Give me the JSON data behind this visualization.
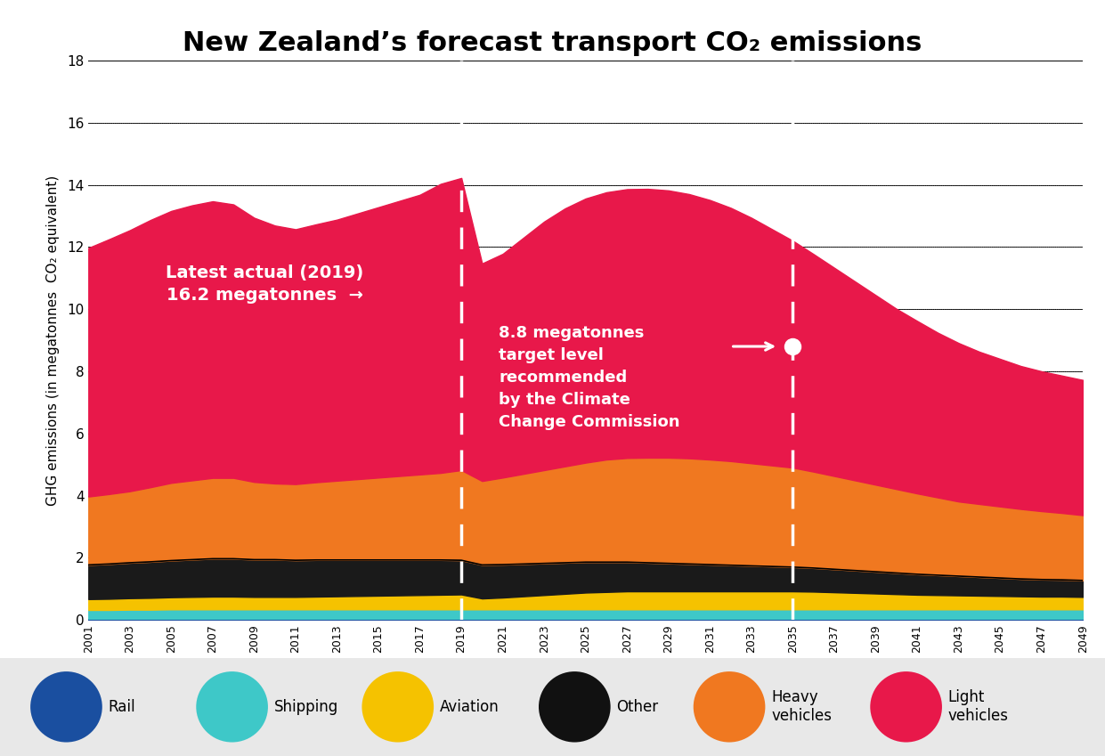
{
  "title": "New Zealand’s forecast transport CO₂ emissions",
  "ylabel": "GHG emissions (in megatonnes  CO₂ equivalent)",
  "years": [
    2001,
    2002,
    2003,
    2004,
    2005,
    2006,
    2007,
    2008,
    2009,
    2010,
    2011,
    2012,
    2013,
    2014,
    2015,
    2016,
    2017,
    2018,
    2019,
    2020,
    2021,
    2022,
    2023,
    2024,
    2025,
    2026,
    2027,
    2028,
    2029,
    2030,
    2031,
    2032,
    2033,
    2034,
    2035,
    2036,
    2037,
    2038,
    2039,
    2040,
    2041,
    2042,
    2043,
    2044,
    2045,
    2046,
    2047,
    2048,
    2049
  ],
  "rail": [
    0.04,
    0.04,
    0.04,
    0.04,
    0.04,
    0.04,
    0.04,
    0.04,
    0.04,
    0.04,
    0.04,
    0.04,
    0.04,
    0.04,
    0.04,
    0.04,
    0.04,
    0.04,
    0.04,
    0.04,
    0.04,
    0.04,
    0.04,
    0.04,
    0.04,
    0.04,
    0.04,
    0.04,
    0.04,
    0.04,
    0.04,
    0.04,
    0.04,
    0.04,
    0.04,
    0.04,
    0.04,
    0.04,
    0.04,
    0.04,
    0.04,
    0.04,
    0.04,
    0.04,
    0.04,
    0.04,
    0.04,
    0.04,
    0.04
  ],
  "shipping": [
    0.28,
    0.28,
    0.29,
    0.29,
    0.3,
    0.3,
    0.3,
    0.3,
    0.3,
    0.3,
    0.3,
    0.3,
    0.3,
    0.3,
    0.3,
    0.3,
    0.3,
    0.3,
    0.3,
    0.3,
    0.3,
    0.3,
    0.3,
    0.3,
    0.3,
    0.3,
    0.3,
    0.3,
    0.3,
    0.3,
    0.3,
    0.3,
    0.3,
    0.3,
    0.3,
    0.3,
    0.3,
    0.3,
    0.3,
    0.3,
    0.3,
    0.3,
    0.3,
    0.3,
    0.3,
    0.3,
    0.3,
    0.3,
    0.3
  ],
  "aviation": [
    0.35,
    0.36,
    0.37,
    0.38,
    0.39,
    0.4,
    0.41,
    0.41,
    0.4,
    0.4,
    0.4,
    0.41,
    0.42,
    0.43,
    0.44,
    0.45,
    0.46,
    0.47,
    0.48,
    0.35,
    0.38,
    0.42,
    0.46,
    0.5,
    0.54,
    0.56,
    0.58,
    0.58,
    0.58,
    0.58,
    0.58,
    0.58,
    0.58,
    0.58,
    0.58,
    0.57,
    0.55,
    0.53,
    0.51,
    0.49,
    0.47,
    0.46,
    0.45,
    0.44,
    0.43,
    0.42,
    0.41,
    0.41,
    0.4
  ],
  "other": [
    1.1,
    1.12,
    1.14,
    1.16,
    1.18,
    1.2,
    1.22,
    1.22,
    1.2,
    1.2,
    1.18,
    1.18,
    1.17,
    1.16,
    1.15,
    1.14,
    1.13,
    1.12,
    1.1,
    1.08,
    1.06,
    1.04,
    1.02,
    1.0,
    0.98,
    0.96,
    0.94,
    0.92,
    0.9,
    0.88,
    0.86,
    0.84,
    0.82,
    0.8,
    0.78,
    0.76,
    0.74,
    0.72,
    0.7,
    0.68,
    0.66,
    0.64,
    0.62,
    0.6,
    0.58,
    0.56,
    0.55,
    0.54,
    0.53
  ],
  "heavy_vehicles": [
    2.2,
    2.25,
    2.3,
    2.4,
    2.5,
    2.55,
    2.6,
    2.6,
    2.5,
    2.45,
    2.45,
    2.5,
    2.55,
    2.6,
    2.65,
    2.7,
    2.75,
    2.8,
    2.9,
    2.7,
    2.8,
    2.9,
    3.0,
    3.1,
    3.2,
    3.3,
    3.35,
    3.38,
    3.4,
    3.4,
    3.38,
    3.35,
    3.3,
    3.25,
    3.2,
    3.1,
    3.0,
    2.9,
    2.8,
    2.7,
    2.6,
    2.5,
    2.4,
    2.35,
    2.3,
    2.25,
    2.2,
    2.15,
    2.1
  ],
  "light_vehicles": [
    8.0,
    8.2,
    8.4,
    8.6,
    8.75,
    8.85,
    8.9,
    8.8,
    8.5,
    8.3,
    8.2,
    8.3,
    8.4,
    8.55,
    8.7,
    8.85,
    9.0,
    9.3,
    9.4,
    7.0,
    7.2,
    7.6,
    8.0,
    8.3,
    8.5,
    8.6,
    8.65,
    8.65,
    8.6,
    8.5,
    8.35,
    8.15,
    7.9,
    7.6,
    7.3,
    7.0,
    6.7,
    6.4,
    6.1,
    5.8,
    5.55,
    5.3,
    5.1,
    4.9,
    4.75,
    4.6,
    4.5,
    4.42,
    4.35
  ],
  "colors": {
    "rail": "#1a4fa0",
    "shipping": "#3ec8c8",
    "aviation": "#f5c200",
    "other": "#1a1a1a",
    "heavy_vehicles": "#f07820",
    "light_vehicles": "#e8184a"
  },
  "ylim": [
    0,
    18
  ],
  "yticks": [
    0,
    2,
    4,
    6,
    8,
    10,
    12,
    14,
    16,
    18
  ],
  "xlim_min": 2001,
  "xlim_max": 2049,
  "vline_1": 2019,
  "vline_2": 2035,
  "dot_x": 2035,
  "dot_y": 8.8,
  "legend_bg": "#e8e8e8",
  "legend_icon_colors": [
    "#1a4fa0",
    "#3ec8c8",
    "#f5c200",
    "#111111",
    "#f07820",
    "#e8184a"
  ],
  "legend_labels": [
    "Rail",
    "Shipping",
    "Aviation",
    "Other",
    "Heavy\nvehicles",
    "Light\nvehicles"
  ]
}
